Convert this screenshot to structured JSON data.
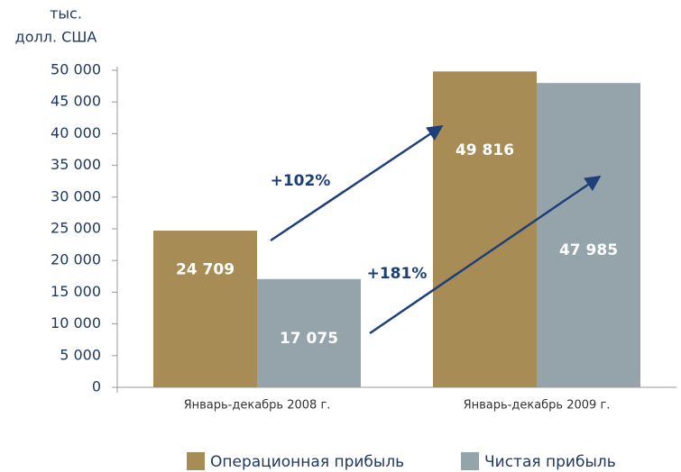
{
  "chart_data": {
    "type": "bar",
    "ylabel": [
      "тыс.",
      "долл. США"
    ],
    "categories": [
      "Январь-декабрь 2008 г.",
      "Январь-декабрь 2009 г."
    ],
    "series": [
      {
        "name": "Операционная прибыль",
        "color": "#a88c55",
        "values": [
          24709,
          49816
        ],
        "value_labels": [
          "24 709",
          "49 816"
        ]
      },
      {
        "name": "Чистая прибыль",
        "color": "#95a3ab",
        "values": [
          17075,
          47985
        ],
        "value_labels": [
          "17 075",
          "47 985"
        ]
      }
    ],
    "annotations": [
      "+102%",
      "+181%"
    ],
    "ylim": [
      0,
      50000
    ],
    "yticks": [
      0,
      {
        "value": 5000,
        "label": "5 000"
      },
      {
        "value": 10000,
        "label": "10 000"
      },
      {
        "value": 15000,
        "label": "15 000"
      },
      {
        "value": 20000,
        "label": "20 000"
      },
      {
        "value": 25000,
        "label": "25 000"
      },
      {
        "value": 30000,
        "label": "30 000"
      },
      {
        "value": 35000,
        "label": "35 000"
      },
      {
        "value": 40000,
        "label": "40 000"
      },
      {
        "value": 45000,
        "label": "45 000"
      },
      {
        "value": 50000,
        "label": "50 000"
      }
    ],
    "legend": "bottom"
  }
}
